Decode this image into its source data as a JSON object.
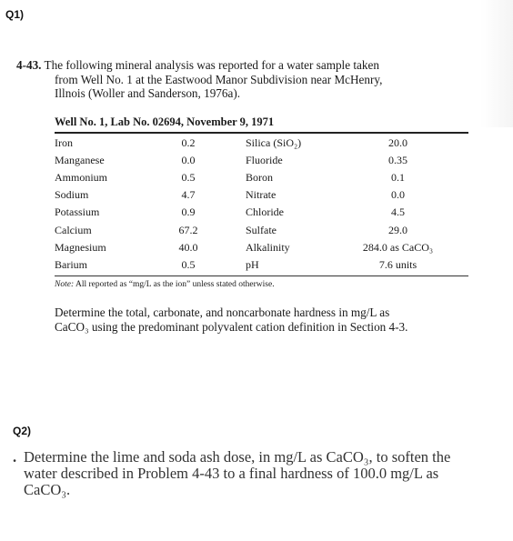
{
  "q1_label": "Q1)",
  "q2_label": "Q2)",
  "problem": {
    "number": "4-43.",
    "line1": "The following mineral analysis was reported for a water sample taken",
    "line2": "from Well No. 1 at the Eastwood Manor Subdivision near McHenry,",
    "line3": "Illnois (Woller and Sanderson, 1976a)."
  },
  "table": {
    "title": "Well No. 1, Lab No. 02694, November 9, 1971",
    "rows": [
      {
        "a": "Iron",
        "av": "0.2",
        "b": "Silica (SiO₂)",
        "bv": "20.0"
      },
      {
        "a": "Manganese",
        "av": "0.0",
        "b": "Fluoride",
        "bv": "0.35"
      },
      {
        "a": "Ammonium",
        "av": "0.5",
        "b": "Boron",
        "bv": "0.1"
      },
      {
        "a": "Sodium",
        "av": "4.7",
        "b": "Nitrate",
        "bv": "0.0"
      },
      {
        "a": "Potassium",
        "av": "0.9",
        "b": "Chloride",
        "bv": "4.5"
      },
      {
        "a": "Calcium",
        "av": "67.2",
        "b": "Sulfate",
        "bv": "29.0"
      },
      {
        "a": "Magnesium",
        "av": "40.0",
        "b": "Alkalinity",
        "bv": "284.0 as CaCO₃"
      },
      {
        "a": "Barium",
        "av": "0.5",
        "b": "pH",
        "bv": "7.6 units"
      }
    ],
    "note_prefix": "Note:",
    "note_text": "All reported as “mg/L as the ion” unless stated otherwise."
  },
  "determine": {
    "line1": "Determine the total, carbonate, and noncarbonate hardness in mg/L as",
    "line2": "CaCO₃ using the predominant polyvalent cation definition in Section 4-3."
  },
  "q2": {
    "bullet": ".",
    "line1": "Determine the lime and soda ash dose, in mg/L as CaCO₃, to soften the",
    "line2": "water described in Problem 4-43 to a final hardness of 100.0 mg/L as",
    "line3": "CaCO₃."
  }
}
